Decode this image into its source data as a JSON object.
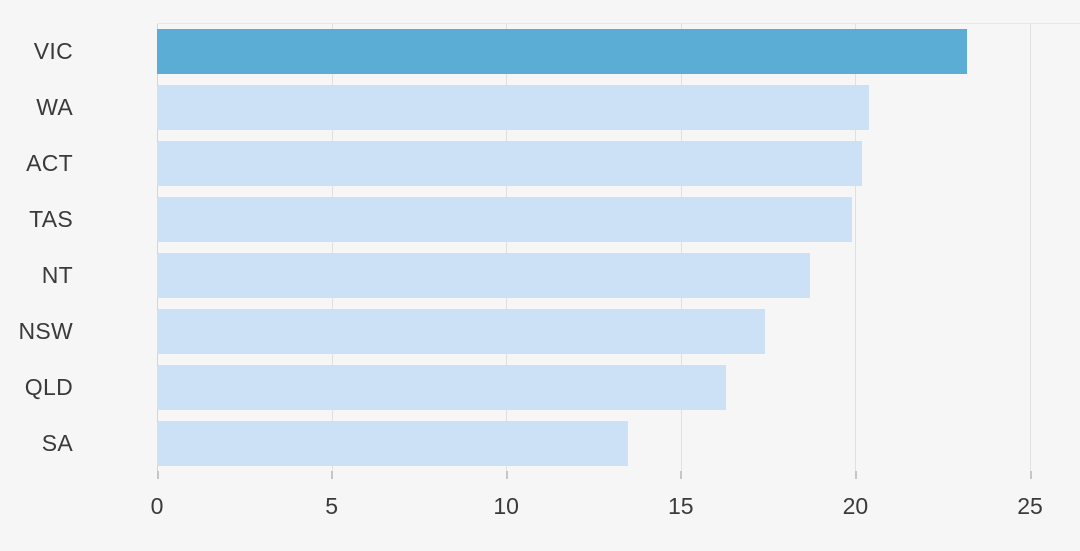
{
  "chart_data": {
    "type": "bar",
    "orientation": "horizontal",
    "title": "",
    "xlabel": "",
    "ylabel": "",
    "categories": [
      "VIC",
      "WA",
      "ACT",
      "TAS",
      "NT",
      "NSW",
      "QLD",
      "SA"
    ],
    "values": [
      23.2,
      20.4,
      20.2,
      19.9,
      18.7,
      17.4,
      16.3,
      13.5
    ],
    "highlighted_category": "VIC",
    "xlim": [
      0,
      25
    ],
    "x_ticks": [
      "0",
      "5",
      "10",
      "15",
      "20",
      "25"
    ],
    "grid": "vertical",
    "legend": "none",
    "colors": {
      "highlight_bar": "#5cadd6",
      "default_bar": "#cce1f6",
      "gridline": "#e0e0e0",
      "axis_line": "#d4d4d4",
      "tick_mark": "#c6c6c6",
      "label_text": "#3a3a3a",
      "background": "#f6f6f6"
    }
  }
}
